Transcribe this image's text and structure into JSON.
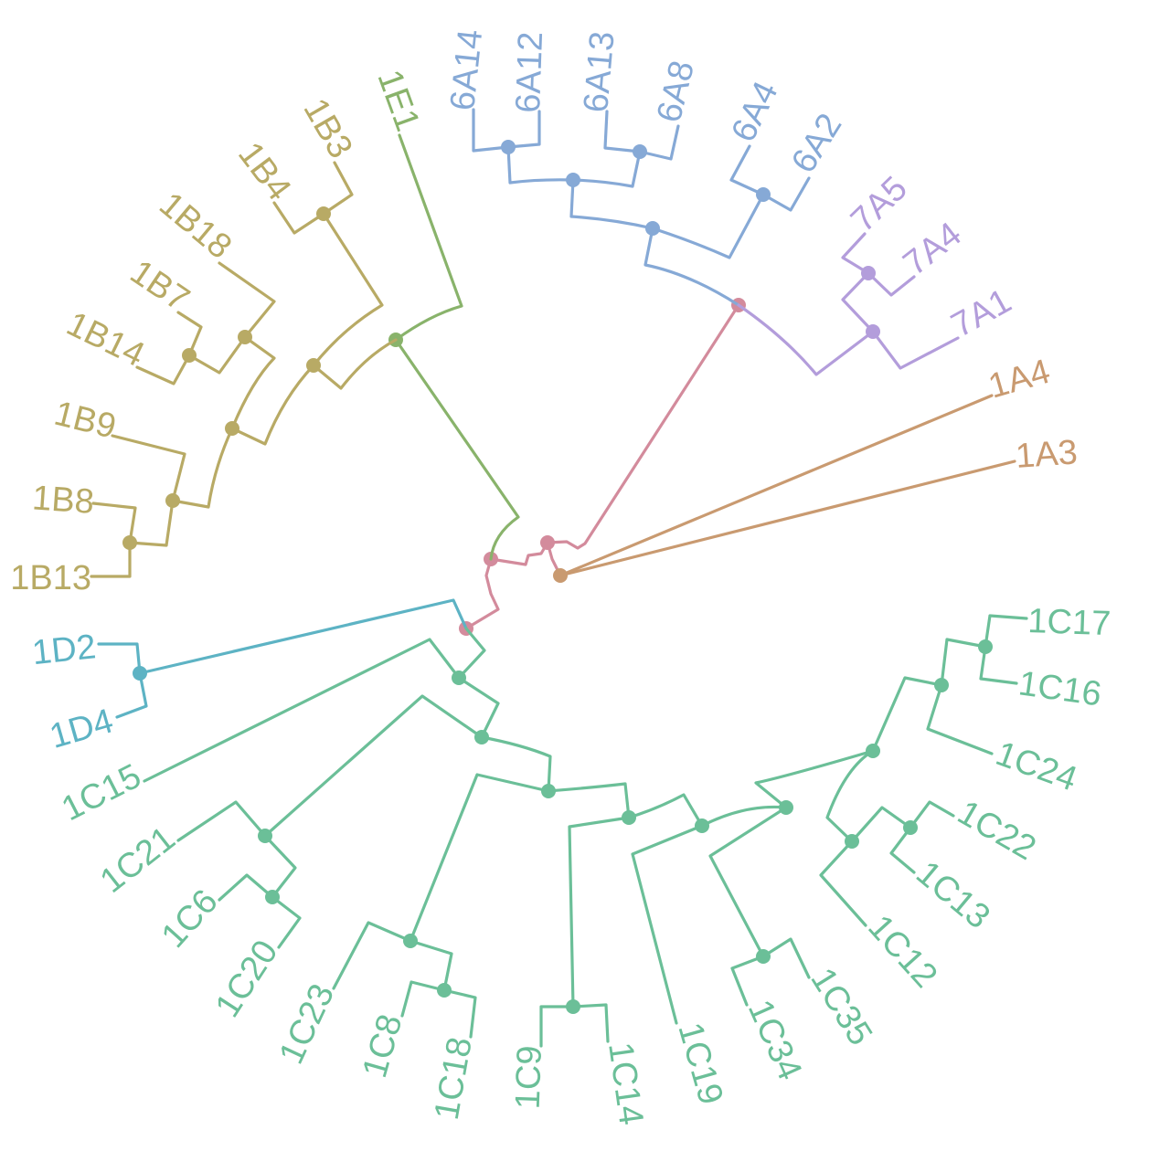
{
  "clades": {
    "6A": {
      "color": "#86a9d6",
      "leaves": [
        "6A14",
        "6A12",
        "6A13",
        "6A8",
        "6A4",
        "6A2"
      ]
    },
    "7A": {
      "color": "#b39ddb",
      "leaves": [
        "7A5",
        "7A4",
        "7A1"
      ]
    },
    "1A": {
      "color": "#c99a70",
      "leaves": [
        "1A4",
        "1A3"
      ]
    },
    "1B": {
      "color": "#b8aa65",
      "leaves": [
        "1B3",
        "1B4",
        "1B18",
        "1B7",
        "1B14",
        "1B9",
        "1B8",
        "1B13"
      ]
    },
    "1E": {
      "color": "#89b36b",
      "leaves": [
        "1E1"
      ]
    },
    "1D": {
      "color": "#5db3c4",
      "leaves": [
        "1D2",
        "1D4"
      ]
    },
    "1C": {
      "color": "#6bbf98",
      "leaves": [
        "1C17",
        "1C16",
        "1C24",
        "1C22",
        "1C13",
        "1C12",
        "1C35",
        "1C34",
        "1C19",
        "1C14",
        "1C9",
        "1C18",
        "1C8",
        "1C23",
        "1C20",
        "1C6",
        "1C21",
        "1C15"
      ]
    },
    "root": {
      "color": "#d38b9c"
    }
  }
}
